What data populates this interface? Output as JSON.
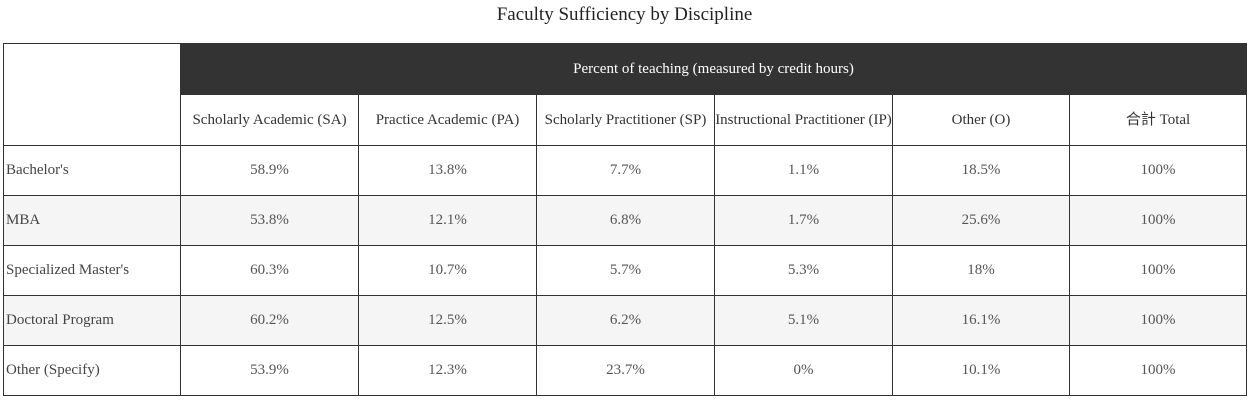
{
  "title": "Faculty Sufficiency by Discipline",
  "table": {
    "band_label": "Percent of teaching (measured by credit hours)",
    "columns": [
      "Scholarly Academic (SA)",
      "Practice Academic (PA)",
      "Scholarly Practitioner (SP)",
      "Instructional Practitioner (IP)",
      "Other (O)",
      "合計 Total"
    ],
    "rows": [
      {
        "label": "Bachelor's",
        "values": [
          "58.9%",
          "13.8%",
          "7.7%",
          "1.1%",
          "18.5%",
          "100%"
        ]
      },
      {
        "label": "MBA",
        "values": [
          "53.8%",
          "12.1%",
          "6.8%",
          "1.7%",
          "25.6%",
          "100%"
        ]
      },
      {
        "label": "Specialized Master's",
        "values": [
          "60.3%",
          "10.7%",
          "5.7%",
          "5.3%",
          "18%",
          "100%"
        ]
      },
      {
        "label": "Doctoral Program",
        "values": [
          "60.2%",
          "12.5%",
          "6.2%",
          "5.1%",
          "16.1%",
          "100%"
        ]
      },
      {
        "label": "Other (Specify)",
        "values": [
          "53.9%",
          "12.3%",
          "23.7%",
          "0%",
          "10.1%",
          "100%"
        ]
      }
    ]
  }
}
